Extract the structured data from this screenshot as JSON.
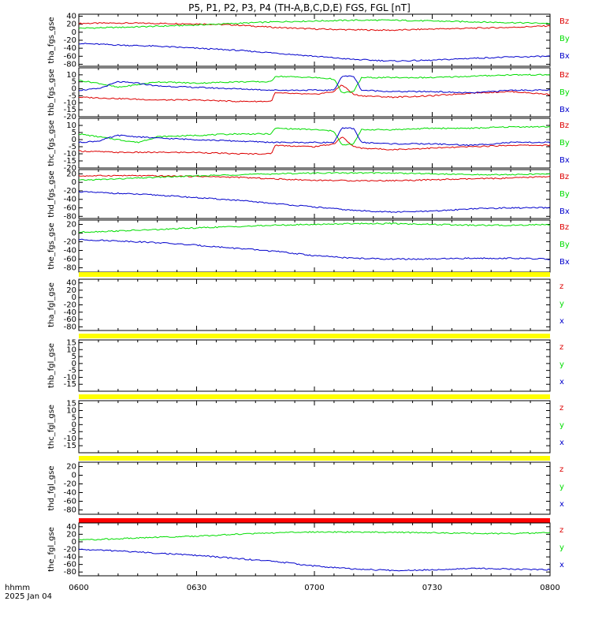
{
  "title": "P5, P1, P2, P3, P4 (TH-A,B,C,D,E) FGS, FGL [nT]",
  "footer": {
    "line1": "hhmm",
    "line2": "2025 Jan 04"
  },
  "colors": {
    "x": "#0000cc",
    "y": "#00dd00",
    "z": "#dd0000",
    "flag_yellow": "#ffff00",
    "flag_red": "#ff0000",
    "frame": "#000000"
  },
  "chart_data": {
    "type": "line",
    "x_ticks": [
      "0600",
      "0630",
      "0700",
      "0730",
      "0800"
    ],
    "x_range": [
      "06:00",
      "08:00"
    ],
    "panels": [
      {
        "ylabel": "tha_fgs_gse",
        "ylim": [
          -85,
          45
        ],
        "yticks": [
          "40",
          "20",
          "0",
          "-20",
          "-40",
          "-60",
          "-80"
        ],
        "legend": [
          "Bz",
          "By",
          "Bx"
        ],
        "series": [
          {
            "name": "Bz",
            "color": "z",
            "t": [
              0,
              10,
              20,
              30,
              40,
              50,
              60,
              70,
              80,
              90,
              100,
              110,
              120
            ],
            "v": [
              22,
              23,
              22,
              21,
              18,
              12,
              8,
              6,
              5,
              8,
              10,
              12,
              16
            ]
          },
          {
            "name": "By",
            "color": "y",
            "t": [
              0,
              10,
              20,
              30,
              40,
              50,
              60,
              70,
              80,
              90,
              100,
              110,
              120
            ],
            "v": [
              10,
              12,
              15,
              18,
              22,
              26,
              28,
              30,
              30,
              28,
              26,
              24,
              22
            ]
          },
          {
            "name": "Bx",
            "color": "x",
            "t": [
              0,
              10,
              20,
              30,
              40,
              50,
              60,
              70,
              80,
              90,
              100,
              110,
              120
            ],
            "v": [
              -28,
              -32,
              -35,
              -40,
              -45,
              -52,
              -60,
              -68,
              -72,
              -70,
              -65,
              -62,
              -60
            ]
          }
        ]
      },
      {
        "ylabel": "thb_fgs_gse",
        "ylim": [
          -20,
          15
        ],
        "yticks": [
          "10",
          "5",
          "0",
          "-5",
          "-10",
          "-15",
          "-20"
        ],
        "legend": [
          "Bz",
          "By",
          "Bx"
        ],
        "series": [
          {
            "name": "Bz",
            "color": "z",
            "t": [
              0,
              10,
              20,
              30,
              40,
              49,
              50,
              60,
              65,
              67,
              70,
              72,
              80,
              90,
              100,
              110,
              120
            ],
            "v": [
              -6,
              -7,
              -8,
              -8,
              -9,
              -9,
              -3,
              -4,
              -2,
              3,
              -4,
              -5,
              -6,
              -5,
              -3,
              -2,
              -4
            ]
          },
          {
            "name": "By",
            "color": "y",
            "t": [
              0,
              5,
              10,
              15,
              20,
              30,
              40,
              49,
              50,
              60,
              65,
              67,
              70,
              72,
              80,
              90,
              100,
              110,
              120
            ],
            "v": [
              6,
              4,
              1,
              3,
              5,
              4,
              5,
              5,
              9,
              8,
              7,
              -3,
              -2,
              8,
              8,
              8,
              9,
              10,
              10
            ]
          },
          {
            "name": "Bx",
            "color": "x",
            "t": [
              0,
              5,
              10,
              15,
              20,
              30,
              40,
              50,
              60,
              65,
              67,
              70,
              72,
              80,
              90,
              100,
              110,
              120
            ],
            "v": [
              -1,
              0,
              5,
              4,
              2,
              1,
              0,
              -1,
              -1,
              -1,
              9,
              9,
              -1,
              -2,
              -2,
              -3,
              -1,
              -1
            ]
          }
        ]
      },
      {
        "ylabel": "thc_fgs_gse",
        "ylim": [
          -20,
          15
        ],
        "yticks": [
          "10",
          "5",
          "0",
          "-5",
          "-10",
          "-15",
          "-20"
        ],
        "legend": [
          "Bz",
          "By",
          "Bx"
        ],
        "series": [
          {
            "name": "Bz",
            "color": "z",
            "t": [
              0,
              10,
              20,
              30,
              40,
              49,
              50,
              60,
              65,
              67,
              70,
              72,
              80,
              90,
              100,
              110,
              120
            ],
            "v": [
              -8,
              -9,
              -9,
              -9,
              -10,
              -10,
              -4,
              -5,
              -3,
              2,
              -5,
              -6,
              -7,
              -6,
              -5,
              -4,
              -4
            ]
          },
          {
            "name": "By",
            "color": "y",
            "t": [
              0,
              5,
              10,
              15,
              20,
              30,
              40,
              49,
              50,
              60,
              65,
              67,
              70,
              72,
              80,
              90,
              100,
              110,
              120
            ],
            "v": [
              4,
              2,
              0,
              -2,
              2,
              3,
              4,
              4,
              8,
              7,
              6,
              -4,
              -3,
              7,
              7,
              8,
              8,
              9,
              9
            ]
          },
          {
            "name": "Bx",
            "color": "x",
            "t": [
              0,
              5,
              10,
              15,
              20,
              30,
              40,
              50,
              60,
              65,
              67,
              70,
              72,
              80,
              90,
              100,
              110,
              120
            ],
            "v": [
              -2,
              -1,
              3,
              2,
              1,
              0,
              -1,
              -2,
              -2,
              -2,
              8,
              8,
              -2,
              -3,
              -3,
              -4,
              -2,
              -2
            ]
          }
        ]
      },
      {
        "ylabel": "thd_fgs_gse",
        "ylim": [
          -85,
          30
        ],
        "yticks": [
          "20",
          "0",
          "-20",
          "-40",
          "-60",
          "-80"
        ],
        "legend": [
          "Bz",
          "By",
          "Bx"
        ],
        "series": [
          {
            "name": "Bz",
            "color": "z",
            "t": [
              0,
              10,
              20,
              30,
              40,
              50,
              60,
              70,
              80,
              90,
              100,
              110,
              120
            ],
            "v": [
              15,
              16,
              15,
              14,
              12,
              8,
              5,
              4,
              4,
              6,
              8,
              10,
              14
            ]
          },
          {
            "name": "By",
            "color": "y",
            "t": [
              0,
              10,
              20,
              30,
              40,
              50,
              60,
              70,
              80,
              90,
              100,
              110,
              120
            ],
            "v": [
              5,
              8,
              12,
              15,
              18,
              20,
              22,
              22,
              22,
              20,
              18,
              18,
              20
            ]
          },
          {
            "name": "Bx",
            "color": "x",
            "t": [
              0,
              10,
              20,
              30,
              40,
              50,
              60,
              70,
              80,
              90,
              100,
              110,
              120
            ],
            "v": [
              -22,
              -26,
              -30,
              -36,
              -42,
              -50,
              -58,
              -66,
              -70,
              -68,
              -62,
              -60,
              -60
            ]
          }
        ]
      },
      {
        "ylabel": "the_fgs_gse",
        "ylim": [
          -90,
          30
        ],
        "yticks": [
          "20",
          "0",
          "-20",
          "-40",
          "-60",
          "-80"
        ],
        "legend": [
          "Bz",
          "By",
          "Bx"
        ],
        "series": [
          {
            "name": "By",
            "color": "y",
            "t": [
              0,
              10,
              20,
              30,
              40,
              50,
              60,
              70,
              80,
              90,
              100,
              110,
              120
            ],
            "v": [
              2,
              5,
              8,
              12,
              15,
              18,
              20,
              22,
              22,
              20,
              18,
              18,
              20
            ]
          },
          {
            "name": "Bx",
            "color": "x",
            "t": [
              0,
              10,
              20,
              30,
              40,
              50,
              60,
              70,
              80,
              90,
              100,
              110,
              120
            ],
            "v": [
              -15,
              -18,
              -22,
              -28,
              -35,
              -42,
              -52,
              -58,
              -60,
              -60,
              -58,
              -58,
              -60
            ]
          }
        ]
      },
      {
        "ylabel": "tha_fgl_gse",
        "ylim": [
          -90,
          50
        ],
        "yticks": [
          "40",
          "20",
          "0",
          "-20",
          "-40",
          "-60",
          "-80"
        ],
        "legend": [
          "z",
          "y",
          "x"
        ],
        "flag": "flag_yellow",
        "series": []
      },
      {
        "ylabel": "thb_fgl_gse",
        "ylim": [
          -20,
          17
        ],
        "yticks": [
          "15",
          "10",
          "5",
          "0",
          "-5",
          "-10",
          "-15"
        ],
        "legend": [
          "z",
          "y",
          "x"
        ],
        "flag": "flag_yellow",
        "series": []
      },
      {
        "ylabel": "thc_fgl_gse",
        "ylim": [
          -20,
          17
        ],
        "yticks": [
          "15",
          "10",
          "5",
          "0",
          "-5",
          "-10",
          "-15"
        ],
        "legend": [
          "z",
          "y",
          "x"
        ],
        "flag": "flag_yellow",
        "series": []
      },
      {
        "ylabel": "thd_fgl_gse",
        "ylim": [
          -90,
          30
        ],
        "yticks": [
          "20",
          "0",
          "-20",
          "-40",
          "-60",
          "-80"
        ],
        "legend": [
          "z",
          "y",
          "x"
        ],
        "flag": "flag_yellow",
        "series": []
      },
      {
        "ylabel": "the_fgl_gse",
        "ylim": [
          -90,
          50
        ],
        "yticks": [
          "40",
          "20",
          "0",
          "-20",
          "-40",
          "-60",
          "-80"
        ],
        "legend": [
          "z",
          "y",
          "x"
        ],
        "flag": "flag_red",
        "series": [
          {
            "name": "y",
            "color": "y",
            "t": [
              0,
              10,
              20,
              30,
              40,
              50,
              60,
              70,
              80,
              90,
              100,
              110,
              120
            ],
            "v": [
              5,
              8,
              12,
              15,
              20,
              24,
              26,
              26,
              25,
              24,
              22,
              22,
              24
            ]
          },
          {
            "name": "x",
            "color": "x",
            "t": [
              0,
              10,
              20,
              30,
              40,
              50,
              60,
              70,
              80,
              90,
              100,
              110,
              120
            ],
            "v": [
              -20,
              -24,
              -30,
              -36,
              -44,
              -52,
              -64,
              -72,
              -76,
              -74,
              -70,
              -72,
              -74
            ]
          }
        ]
      }
    ]
  }
}
